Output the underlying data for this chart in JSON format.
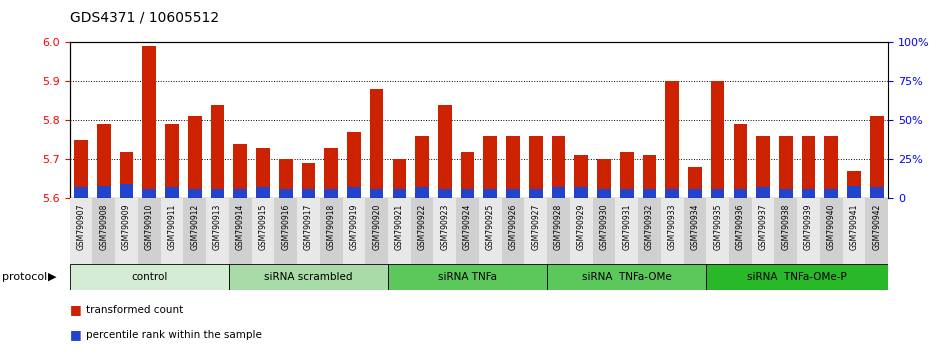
{
  "title": "GDS4371 / 10605512",
  "samples": [
    "GSM790907",
    "GSM790908",
    "GSM790909",
    "GSM790910",
    "GSM790911",
    "GSM790912",
    "GSM790913",
    "GSM790914",
    "GSM790915",
    "GSM790916",
    "GSM790917",
    "GSM790918",
    "GSM790919",
    "GSM790920",
    "GSM790921",
    "GSM790922",
    "GSM790923",
    "GSM790924",
    "GSM790925",
    "GSM790926",
    "GSM790927",
    "GSM790928",
    "GSM790929",
    "GSM790930",
    "GSM790931",
    "GSM790932",
    "GSM790933",
    "GSM790934",
    "GSM790935",
    "GSM790936",
    "GSM790937",
    "GSM790938",
    "GSM790939",
    "GSM790940",
    "GSM790941",
    "GSM790942"
  ],
  "red_values": [
    5.75,
    5.79,
    5.72,
    5.99,
    5.79,
    5.81,
    5.84,
    5.74,
    5.73,
    5.7,
    5.69,
    5.73,
    5.77,
    5.88,
    5.7,
    5.76,
    5.84,
    5.72,
    5.76,
    5.76,
    5.76,
    5.76,
    5.71,
    5.7,
    5.72,
    5.71,
    5.9,
    5.68,
    5.9,
    5.79,
    5.76,
    5.76,
    5.76,
    5.76,
    5.67,
    5.81
  ],
  "blue_percentiles": [
    7,
    8,
    9,
    6,
    7,
    6,
    6,
    6,
    7,
    6,
    6,
    6,
    7,
    6,
    6,
    7,
    6,
    6,
    6,
    6,
    6,
    7,
    7,
    6,
    6,
    6,
    6,
    6,
    6,
    6,
    7,
    6,
    6,
    6,
    8,
    7
  ],
  "groups": [
    {
      "label": "control",
      "start": 0,
      "end": 7,
      "color": "#d4ecd4"
    },
    {
      "label": "siRNA scrambled",
      "start": 7,
      "end": 14,
      "color": "#a8dba8"
    },
    {
      "label": "siRNA TNFa",
      "start": 14,
      "end": 21,
      "color": "#5cc85c"
    },
    {
      "label": "siRNA  TNFa-OMe",
      "start": 21,
      "end": 28,
      "color": "#5cc85c"
    },
    {
      "label": "siRNA  TNFa-OMe-P",
      "start": 28,
      "end": 36,
      "color": "#28b828"
    }
  ],
  "ylim_left": [
    5.6,
    6.0
  ],
  "ylim_right": [
    0,
    100
  ],
  "yticks_left": [
    5.6,
    5.7,
    5.8,
    5.9,
    6.0
  ],
  "yticks_right": [
    0,
    25,
    50,
    75,
    100
  ],
  "ytick_labels_right": [
    "0",
    "25",
    "50",
    "75",
    "100"
  ],
  "bar_color_red": "#cc2200",
  "bar_color_blue": "#2244cc",
  "legend_red": "transformed count",
  "legend_blue": "percentile rank within the sample"
}
